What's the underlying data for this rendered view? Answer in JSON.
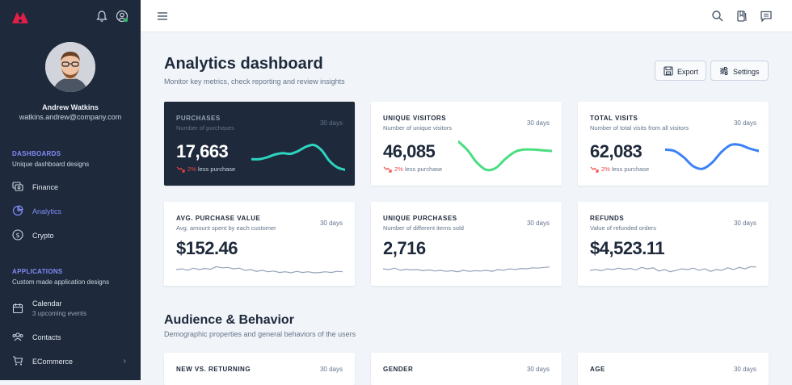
{
  "user": {
    "name": "Andrew Watkins",
    "email": "watkins.andrew@company.com"
  },
  "sidebar": {
    "sections": [
      {
        "title": "DASHBOARDS",
        "subtitle": "Unique dashboard designs"
      },
      {
        "title": "APPLICATIONS",
        "subtitle": "Custom made application designs"
      }
    ],
    "items": [
      {
        "label": "Finance",
        "icon": "finance-icon"
      },
      {
        "label": "Analytics",
        "icon": "analytics-icon"
      },
      {
        "label": "Crypto",
        "icon": "crypto-icon"
      },
      {
        "label": "Calendar",
        "sub": "3 upcoming events",
        "icon": "calendar-icon"
      },
      {
        "label": "Contacts",
        "icon": "contacts-icon"
      },
      {
        "label": "ECommerce",
        "icon": "cart-icon"
      }
    ]
  },
  "header": {
    "title": "Analytics dashboard",
    "subtitle": "Monitor key metrics, check reporting and review insights",
    "export_label": "Export",
    "settings_label": "Settings"
  },
  "cards": [
    {
      "title": "PURCHASES",
      "sub": "Number of purchases",
      "period": "30 days",
      "value": "17,663",
      "pct": "2%",
      "trend": "less purchase",
      "color": "#2dd4bf",
      "chart_data": {
        "type": "line",
        "values": [
          0.45,
          0.45,
          0.5,
          0.58,
          0.62,
          0.6,
          0.68,
          0.8,
          0.85,
          0.7,
          0.4,
          0.22,
          0.15
        ]
      }
    },
    {
      "title": "UNIQUE VISITORS",
      "sub": "Number of unique visitors",
      "period": "30 days",
      "value": "46,085",
      "pct": "2%",
      "trend": "less purchase",
      "color": "#4ade80",
      "chart_data": {
        "type": "line",
        "values": [
          0.95,
          0.7,
          0.35,
          0.15,
          0.2,
          0.45,
          0.65,
          0.72,
          0.72,
          0.7,
          0.68
        ]
      }
    },
    {
      "title": "TOTAL VISITS",
      "sub": "Number of total visits from all visitors",
      "period": "30 days",
      "value": "62,083",
      "pct": "2%",
      "trend": "less purchase",
      "color": "#3b82f6",
      "chart_data": {
        "type": "line",
        "values": [
          0.72,
          0.68,
          0.5,
          0.25,
          0.18,
          0.35,
          0.65,
          0.85,
          0.85,
          0.75,
          0.68
        ]
      }
    },
    {
      "title": "AVG. PURCHASE VALUE",
      "sub": "Avg. amount spent by each customer",
      "period": "30 days",
      "value": "$152.46",
      "color": "#94a3b8",
      "chart_data": {
        "type": "line",
        "values": [
          0.5,
          0.55,
          0.45,
          0.6,
          0.5,
          0.58,
          0.52,
          0.7,
          0.62,
          0.65,
          0.55,
          0.6,
          0.45,
          0.5,
          0.38,
          0.45,
          0.35,
          0.4,
          0.3,
          0.35,
          0.28,
          0.38,
          0.3,
          0.35,
          0.28,
          0.3,
          0.35,
          0.3,
          0.38,
          0.35
        ]
      }
    },
    {
      "title": "UNIQUE PURCHASES",
      "sub": "Number of different items sold",
      "period": "30 days",
      "value": "2,716",
      "color": "#94a3b8",
      "chart_data": {
        "type": "line",
        "values": [
          0.55,
          0.5,
          0.6,
          0.45,
          0.52,
          0.48,
          0.5,
          0.42,
          0.48,
          0.4,
          0.45,
          0.38,
          0.42,
          0.35,
          0.45,
          0.38,
          0.42,
          0.4,
          0.45,
          0.38,
          0.5,
          0.45,
          0.55,
          0.5,
          0.58,
          0.55,
          0.62,
          0.6,
          0.65,
          0.68
        ]
      }
    },
    {
      "title": "REFUNDS",
      "sub": "Value of refunded orders",
      "period": "30 days",
      "value": "$4,523.11",
      "color": "#94a3b8",
      "chart_data": {
        "type": "line",
        "values": [
          0.45,
          0.5,
          0.42,
          0.55,
          0.5,
          0.6,
          0.52,
          0.58,
          0.48,
          0.65,
          0.55,
          0.62,
          0.4,
          0.5,
          0.35,
          0.45,
          0.55,
          0.5,
          0.6,
          0.45,
          0.55,
          0.38,
          0.5,
          0.45,
          0.62,
          0.5,
          0.65,
          0.55,
          0.7,
          0.68
        ]
      }
    }
  ],
  "section2": {
    "title": "Audience & Behavior",
    "subtitle": "Demographic properties and general behaviors of the users"
  },
  "cards2": [
    {
      "title": "NEW VS. RETURNING",
      "period": "30 days"
    },
    {
      "title": "GENDER",
      "period": "30 days"
    },
    {
      "title": "AGE",
      "period": "30 days"
    }
  ]
}
